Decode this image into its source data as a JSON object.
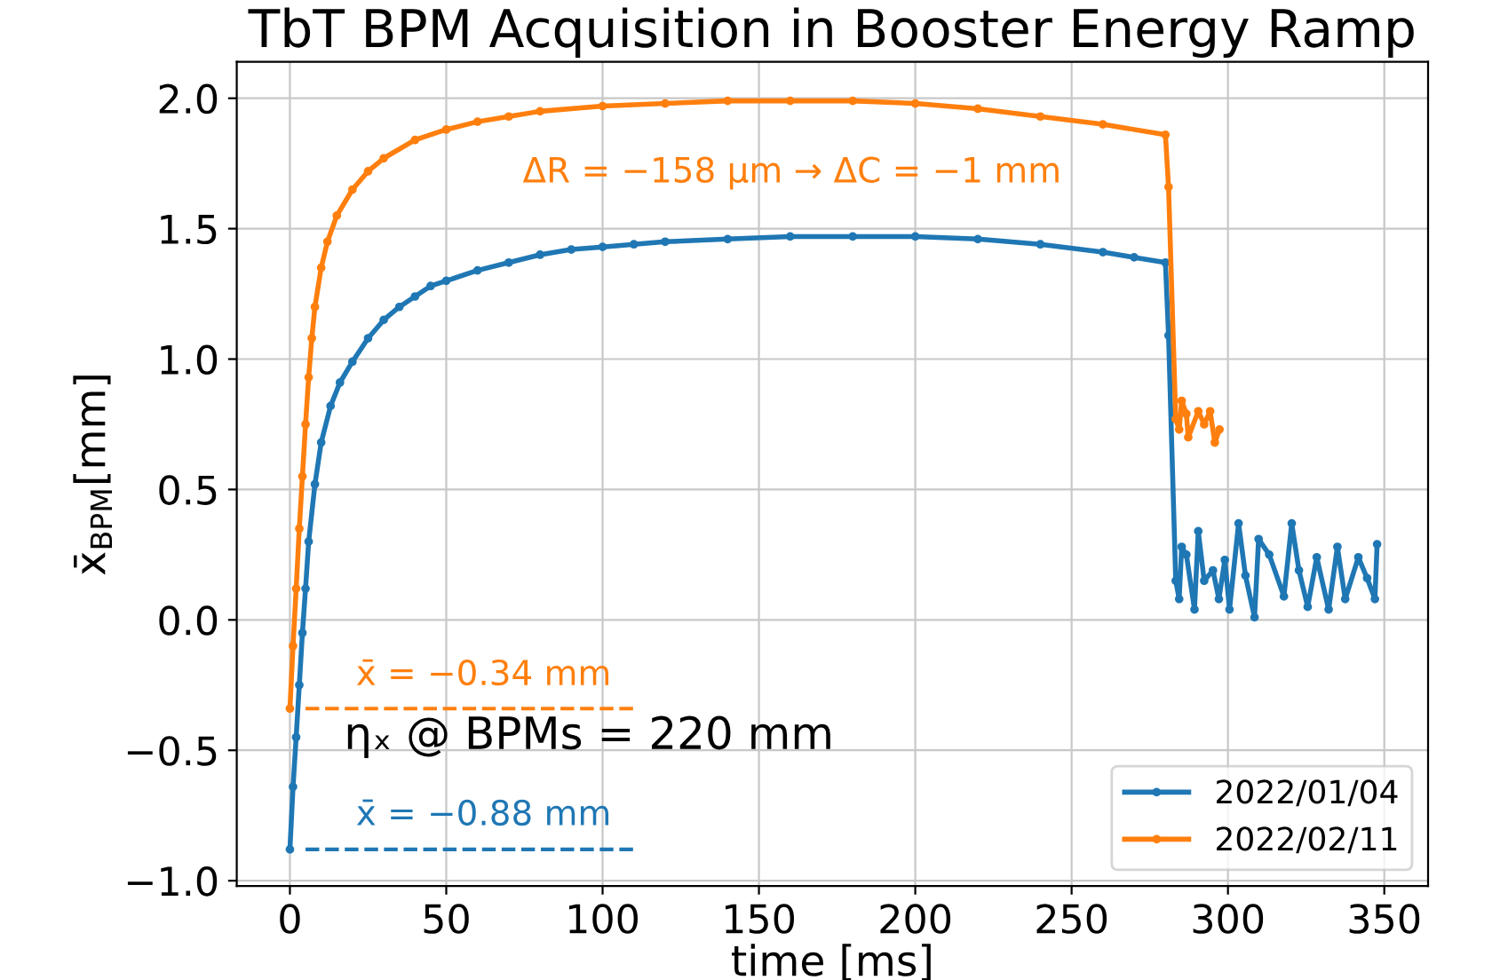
{
  "chart_data": {
    "type": "line",
    "title": "TbT BPM Acquisition in Booster Energy Ramp",
    "xlabel": "time [ms]",
    "ylabel": "x̄$_{BPM}$[mm]",
    "xlim": [
      -17,
      364
    ],
    "ylim": [
      -1.02,
      2.14
    ],
    "xticks": [
      0,
      50,
      100,
      150,
      200,
      250,
      300,
      350
    ],
    "yticks": [
      {
        "value": -1.0,
        "label": "−1.0"
      },
      {
        "value": -0.5,
        "label": "−0.5"
      },
      {
        "value": 0.0,
        "label": "0.0"
      },
      0.5,
      {
        "value": 1.0,
        "label": "1.0"
      },
      1.5,
      {
        "value": 2.0,
        "label": "2.0"
      }
    ],
    "grid": true,
    "legend": "bottom right",
    "marker": "circle",
    "line_style": "solid",
    "series": [
      {
        "name": "2022/01/04",
        "color": "#1f77b4",
        "x": [
          0,
          1,
          2,
          3,
          4,
          5,
          6,
          8,
          10,
          13,
          16,
          20,
          25,
          30,
          35,
          40,
          45,
          50,
          60,
          70,
          80,
          90,
          100,
          110,
          120,
          140,
          160,
          180,
          200,
          220,
          240,
          260,
          270,
          280,
          281,
          283.3,
          284.4,
          285.2,
          286.7,
          289.3,
          290.5,
          292.4,
          295.2,
          297.1,
          299.0,
          300.5,
          303.4,
          305.6,
          308.5,
          309.8,
          313.2,
          317.9,
          320.4,
          322.7,
          325.5,
          328.4,
          332.2,
          335.0,
          337.5,
          341.7,
          344.5,
          347.0,
          347.7
        ],
        "values": [
          -0.88,
          -0.64,
          -0.45,
          -0.25,
          -0.05,
          0.12,
          0.3,
          0.52,
          0.68,
          0.82,
          0.91,
          0.99,
          1.08,
          1.15,
          1.2,
          1.24,
          1.28,
          1.3,
          1.34,
          1.37,
          1.4,
          1.42,
          1.43,
          1.44,
          1.45,
          1.46,
          1.47,
          1.47,
          1.47,
          1.46,
          1.44,
          1.41,
          1.39,
          1.37,
          1.09,
          0.15,
          0.08,
          0.28,
          0.25,
          0.04,
          0.34,
          0.15,
          0.19,
          0.08,
          0.23,
          0.04,
          0.37,
          0.17,
          0.01,
          0.31,
          0.25,
          0.09,
          0.37,
          0.19,
          0.05,
          0.24,
          0.04,
          0.28,
          0.08,
          0.24,
          0.16,
          0.08,
          0.29
        ]
      },
      {
        "name": "2022/02/11",
        "color": "#ff7f0e",
        "x": [
          0,
          1,
          2,
          3,
          4,
          5,
          6,
          7,
          8,
          10,
          12,
          15,
          20,
          25,
          30,
          40,
          50,
          60,
          70,
          80,
          100,
          120,
          140,
          160,
          180,
          200,
          220,
          240,
          260,
          280,
          281,
          283.3,
          284.4,
          285.2,
          286.7,
          287.3,
          290.5,
          292.4,
          294.3,
          295.8,
          297.3
        ],
        "values": [
          -0.34,
          -0.1,
          0.12,
          0.35,
          0.55,
          0.75,
          0.93,
          1.08,
          1.2,
          1.35,
          1.45,
          1.55,
          1.65,
          1.72,
          1.77,
          1.84,
          1.88,
          1.91,
          1.93,
          1.95,
          1.97,
          1.98,
          1.99,
          1.99,
          1.99,
          1.98,
          1.96,
          1.93,
          1.9,
          1.86,
          1.66,
          0.77,
          0.73,
          0.84,
          0.79,
          0.7,
          0.8,
          0.75,
          0.8,
          0.68,
          0.73
        ]
      },
      {
        "color": "#ff7f0e",
        "x": [
          5,
          110
        ],
        "values": [
          -0.34,
          -0.34
        ],
        "line_style": "dashed",
        "marker": "none"
      },
      {
        "color": "#1f77b4",
        "x": [
          5,
          110
        ],
        "values": [
          -0.88,
          -0.88
        ],
        "line_style": "dashed",
        "marker": "none"
      }
    ],
    "annotations": [
      "ΔR = −158 µm → ΔC = −1 mm",
      "x̄ = −0.34 mm",
      "ηₓ @ BPMs = 220 mm",
      "x̄ = −0.88 mm"
    ]
  }
}
